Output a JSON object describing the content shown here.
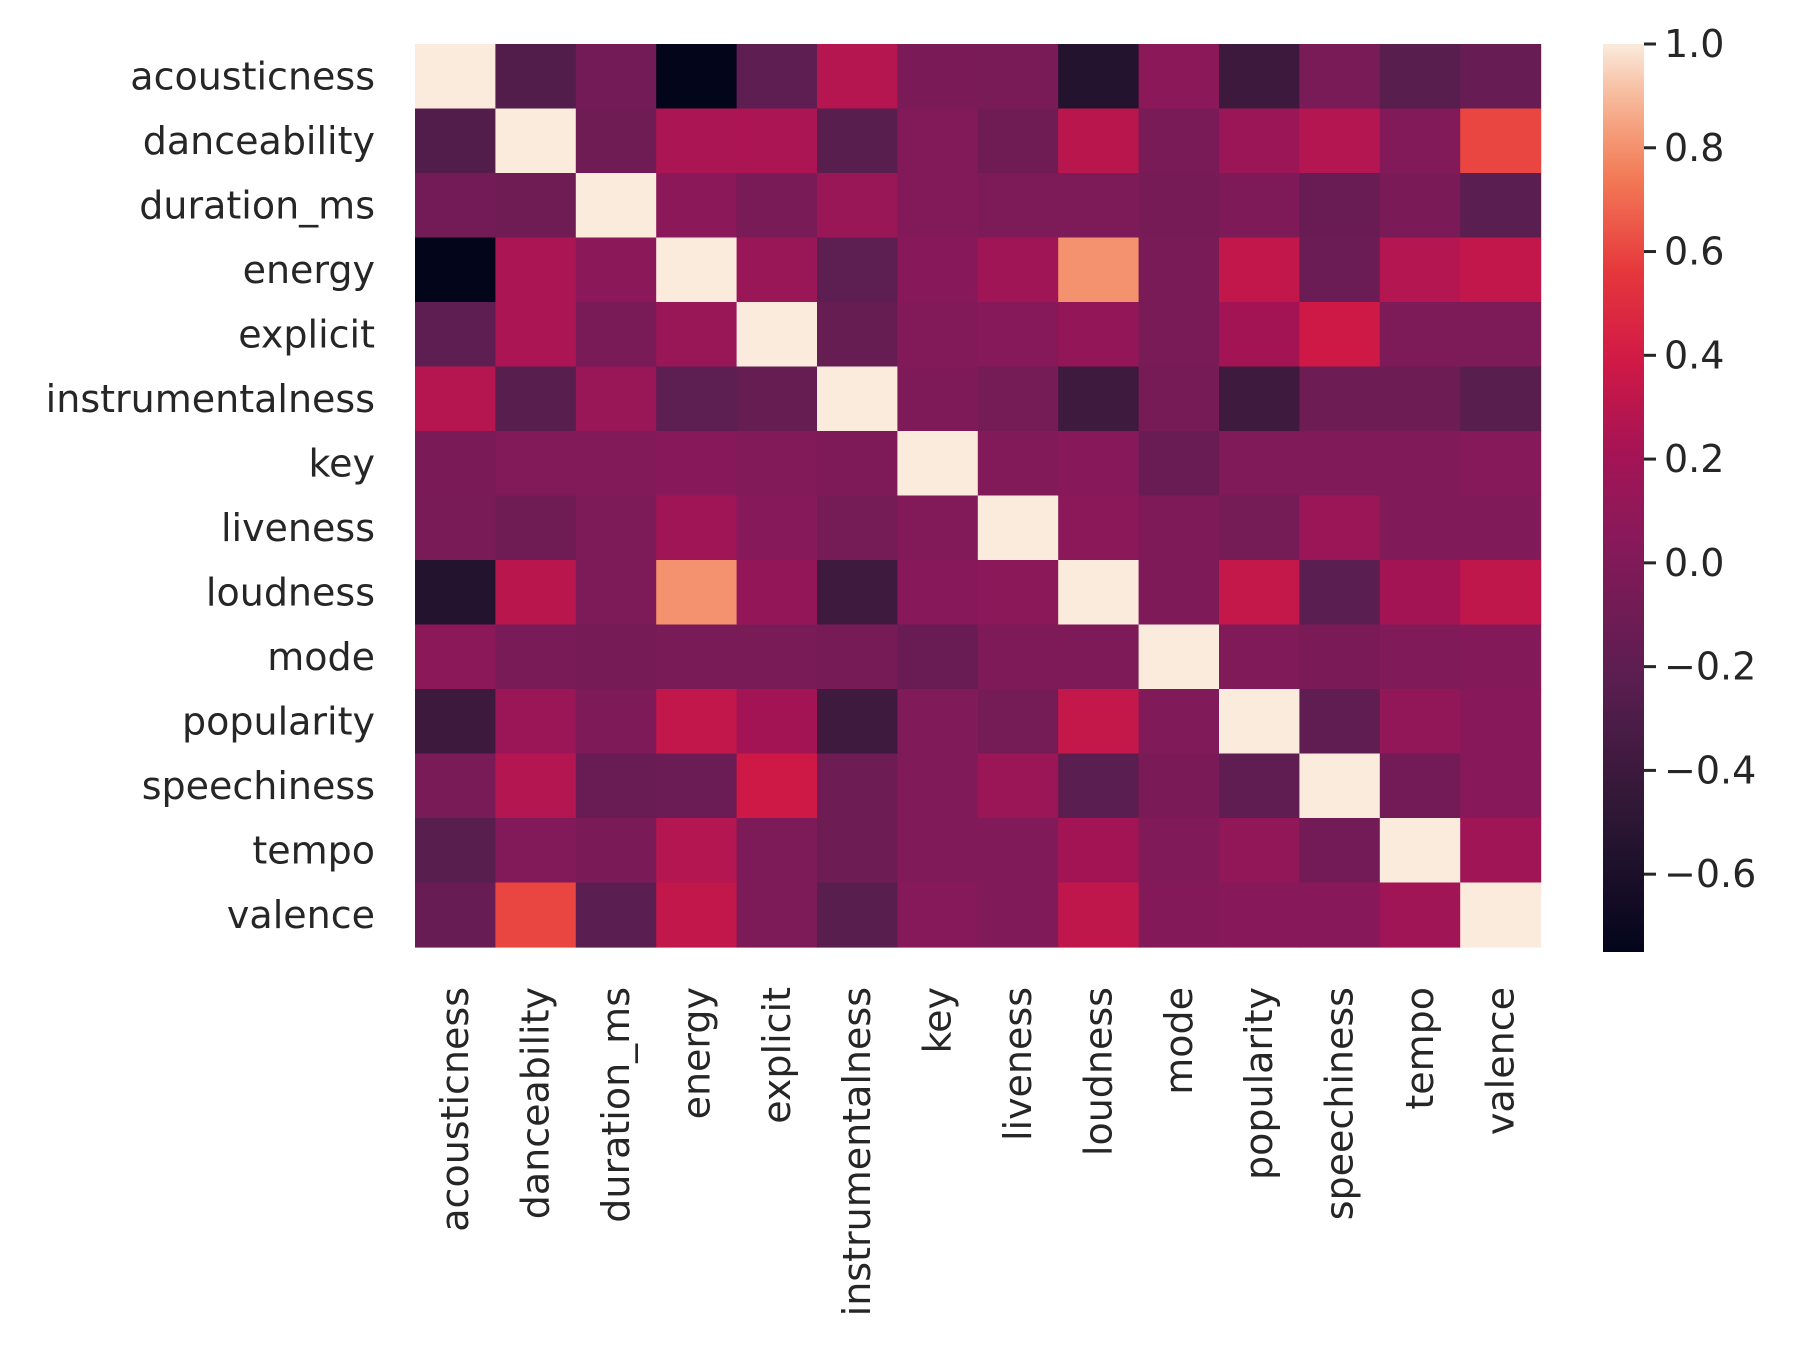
{
  "chart_data": {
    "type": "heatmap",
    "title": "",
    "xlabel": "",
    "ylabel": "",
    "rows": [
      "acousticness",
      "danceability",
      "duration_ms",
      "energy",
      "explicit",
      "instrumentalness",
      "key",
      "liveness",
      "loudness",
      "mode",
      "popularity",
      "speechiness",
      "tempo",
      "valence"
    ],
    "columns": [
      "acousticness",
      "danceability",
      "duration_ms",
      "energy",
      "explicit",
      "instrumentalness",
      "key",
      "liveness",
      "loudness",
      "mode",
      "popularity",
      "speechiness",
      "tempo",
      "valence"
    ],
    "values": [
      [
        1.0,
        -0.27,
        -0.08,
        -0.75,
        -0.2,
        0.28,
        -0.04,
        -0.05,
        -0.55,
        0.06,
        -0.4,
        -0.05,
        -0.24,
        -0.15
      ],
      [
        -0.27,
        1.0,
        -0.1,
        0.24,
        0.24,
        -0.24,
        0.01,
        -0.1,
        0.3,
        -0.05,
        0.15,
        0.27,
        0.01,
        0.6
      ],
      [
        -0.08,
        -0.1,
        1.0,
        0.06,
        -0.05,
        0.14,
        0.01,
        -0.02,
        -0.02,
        -0.06,
        -0.01,
        -0.14,
        -0.04,
        -0.22
      ],
      [
        -0.75,
        0.24,
        0.06,
        1.0,
        0.14,
        -0.21,
        0.04,
        0.18,
        0.8,
        -0.05,
        0.33,
        -0.12,
        0.27,
        0.33
      ],
      [
        -0.2,
        0.24,
        -0.05,
        0.14,
        1.0,
        -0.16,
        0.01,
        0.03,
        0.11,
        -0.05,
        0.2,
        0.38,
        -0.02,
        -0.02
      ],
      [
        0.28,
        -0.24,
        0.14,
        -0.21,
        -0.16,
        1.0,
        -0.01,
        -0.07,
        -0.38,
        -0.06,
        -0.39,
        -0.11,
        -0.11,
        -0.24
      ],
      [
        -0.04,
        0.01,
        0.01,
        0.04,
        0.01,
        -0.01,
        1.0,
        0.01,
        0.04,
        -0.14,
        0.0,
        0.0,
        0.0,
        0.03
      ],
      [
        -0.05,
        -0.1,
        -0.02,
        0.18,
        0.03,
        -0.07,
        0.01,
        1.0,
        0.06,
        -0.01,
        -0.07,
        0.15,
        0.0,
        0.0
      ],
      [
        -0.55,
        0.3,
        -0.02,
        0.8,
        0.11,
        -0.38,
        0.04,
        0.06,
        1.0,
        -0.01,
        0.34,
        -0.22,
        0.2,
        0.32
      ],
      [
        0.06,
        -0.05,
        -0.06,
        -0.05,
        -0.05,
        -0.06,
        -0.14,
        -0.01,
        -0.01,
        1.0,
        0.0,
        -0.04,
        0.0,
        0.02
      ],
      [
        -0.4,
        0.15,
        -0.01,
        0.33,
        0.2,
        -0.39,
        0.0,
        -0.07,
        0.34,
        0.0,
        1.0,
        -0.19,
        0.1,
        0.04
      ],
      [
        -0.05,
        0.27,
        -0.14,
        -0.12,
        0.38,
        -0.11,
        0.0,
        0.15,
        -0.22,
        -0.04,
        -0.19,
        1.0,
        -0.08,
        0.04
      ],
      [
        -0.24,
        0.01,
        -0.04,
        0.27,
        -0.02,
        -0.11,
        0.0,
        0.0,
        0.2,
        0.0,
        0.1,
        -0.08,
        1.0,
        0.18
      ],
      [
        -0.15,
        0.6,
        -0.22,
        0.33,
        -0.02,
        -0.24,
        0.03,
        0.0,
        0.32,
        0.02,
        0.04,
        0.04,
        0.18,
        1.0
      ]
    ],
    "vmin": -0.75,
    "vmax": 1.0,
    "colormap": "rocket",
    "colorbar": {
      "ticks": [
        1.0,
        0.8,
        0.6,
        0.4,
        0.2,
        0.0,
        -0.2,
        -0.4,
        -0.6
      ],
      "tick_labels": [
        "1.0",
        "0.8",
        "0.6",
        "0.4",
        "0.2",
        "0.0",
        "−0.2",
        "−0.4",
        "−0.6"
      ]
    }
  }
}
